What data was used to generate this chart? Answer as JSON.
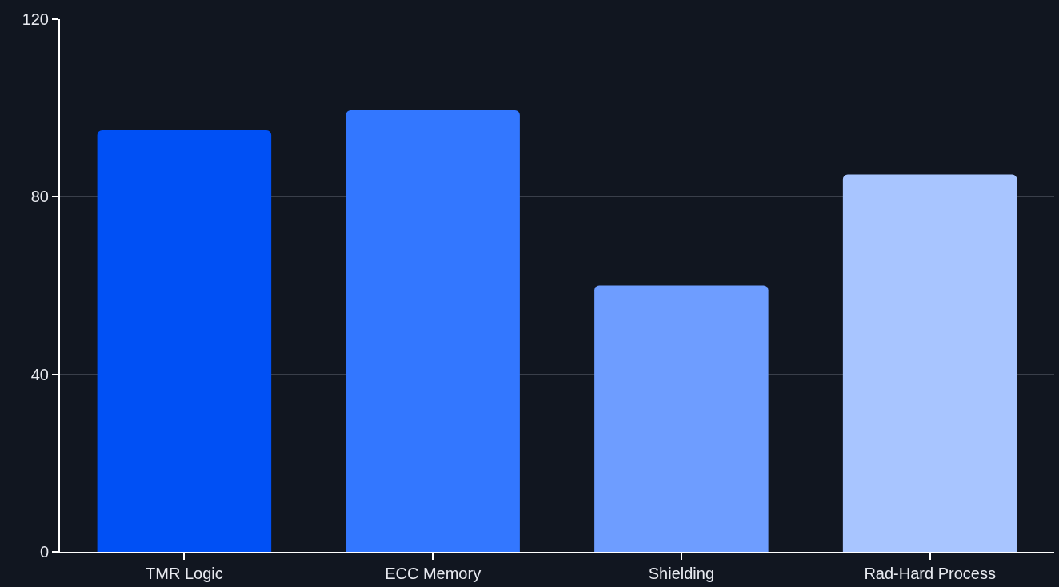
{
  "chart_data": {
    "type": "bar",
    "categories": [
      "TMR Logic",
      "ECC Memory",
      "Shielding",
      "Rad-Hard Process"
    ],
    "values": [
      95,
      99.5,
      60,
      85
    ],
    "colors": [
      "#0050f5",
      "#3377ff",
      "#6e9dff",
      "#a8c5ff"
    ],
    "ylim": [
      0,
      120
    ],
    "yticks": [
      0,
      40,
      80,
      120
    ],
    "grid": "y"
  }
}
